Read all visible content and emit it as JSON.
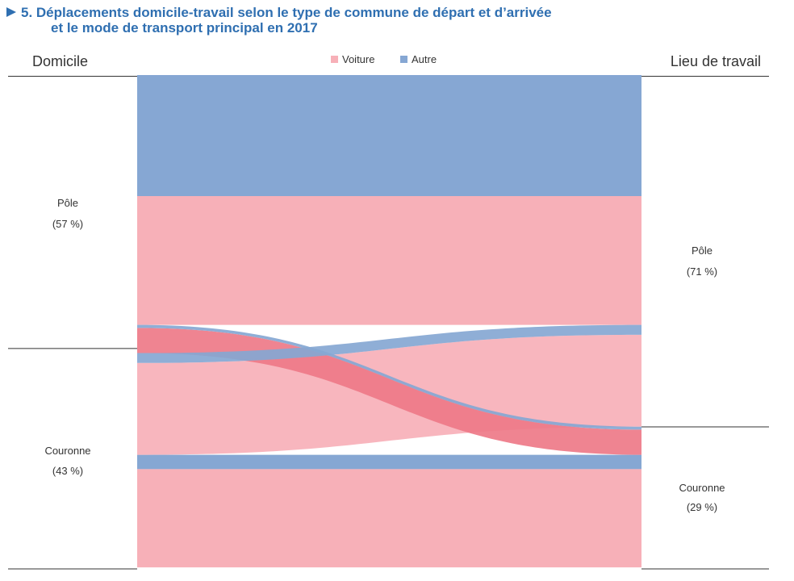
{
  "title": {
    "line1": "5. Déplacements domicile-travail selon le type de commune de départ et d’arrivée",
    "line2": "et le mode de transport principal en 2017"
  },
  "colors": {
    "voiture": "#f7b0b8",
    "autre": "#86a7d3",
    "highlight": "#ee7a88"
  },
  "chart_data": {
    "type": "sankey",
    "left_axis_label": "Domicile",
    "right_axis_label": "Lieu de travail",
    "legend": [
      {
        "name": "Voiture",
        "color": "#f7b0b8"
      },
      {
        "name": "Autre",
        "color": "#86a7d3"
      }
    ],
    "left_nodes": [
      {
        "name": "Pôle",
        "share_label": "(57 %)",
        "share": 57
      },
      {
        "name": "Couronne",
        "share_label": "(43 %)",
        "share": 43
      }
    ],
    "right_nodes": [
      {
        "name": "Pôle",
        "share_label": "(71 %)",
        "share": 71
      },
      {
        "name": "Couronne",
        "share_label": "(29 %)",
        "share": 29
      }
    ],
    "flows": [
      {
        "from": "Pôle",
        "to": "Pôle",
        "mode": "Autre",
        "share": 24.5
      },
      {
        "from": "Pôle",
        "to": "Pôle",
        "mode": "Voiture",
        "share": 26.1
      },
      {
        "from": "Pôle",
        "to": "Couronne",
        "mode": "Autre",
        "share": 0.6
      },
      {
        "from": "Pôle",
        "to": "Couronne",
        "mode": "Voiture",
        "share": 5.1
      },
      {
        "from": "Couronne",
        "to": "Pôle",
        "mode": "Autre",
        "share": 2.0
      },
      {
        "from": "Couronne",
        "to": "Pôle",
        "mode": "Voiture",
        "share": 18.6
      },
      {
        "from": "Couronne",
        "to": "Couronne",
        "mode": "Autre",
        "share": 2.9
      },
      {
        "from": "Couronne",
        "to": "Couronne",
        "mode": "Voiture",
        "share": 19.9
      }
    ]
  }
}
